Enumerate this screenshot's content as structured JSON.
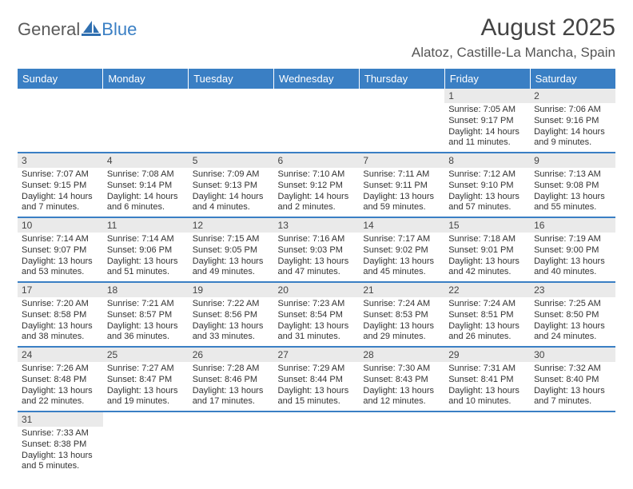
{
  "logo": {
    "text1": "General",
    "text2": "Blue"
  },
  "title": "August 2025",
  "location": "Alatoz, Castille-La Mancha, Spain",
  "colors": {
    "header_bg": "#3a7fc4",
    "header_text": "#ffffff",
    "daynum_bg": "#eaeaea",
    "accent_line": "#3a7fc4",
    "text": "#333333"
  },
  "typography": {
    "title_fontsize": 30,
    "location_fontsize": 17,
    "dayheader_fontsize": 13,
    "daynum_fontsize": 12,
    "info_fontsize": 11
  },
  "day_headers": [
    "Sunday",
    "Monday",
    "Tuesday",
    "Wednesday",
    "Thursday",
    "Friday",
    "Saturday"
  ],
  "weeks": [
    [
      null,
      null,
      null,
      null,
      null,
      {
        "n": "1",
        "sr": "7:05 AM",
        "ss": "9:17 PM",
        "dl": "14 hours and 11 minutes."
      },
      {
        "n": "2",
        "sr": "7:06 AM",
        "ss": "9:16 PM",
        "dl": "14 hours and 9 minutes."
      }
    ],
    [
      {
        "n": "3",
        "sr": "7:07 AM",
        "ss": "9:15 PM",
        "dl": "14 hours and 7 minutes."
      },
      {
        "n": "4",
        "sr": "7:08 AM",
        "ss": "9:14 PM",
        "dl": "14 hours and 6 minutes."
      },
      {
        "n": "5",
        "sr": "7:09 AM",
        "ss": "9:13 PM",
        "dl": "14 hours and 4 minutes."
      },
      {
        "n": "6",
        "sr": "7:10 AM",
        "ss": "9:12 PM",
        "dl": "14 hours and 2 minutes."
      },
      {
        "n": "7",
        "sr": "7:11 AM",
        "ss": "9:11 PM",
        "dl": "13 hours and 59 minutes."
      },
      {
        "n": "8",
        "sr": "7:12 AM",
        "ss": "9:10 PM",
        "dl": "13 hours and 57 minutes."
      },
      {
        "n": "9",
        "sr": "7:13 AM",
        "ss": "9:08 PM",
        "dl": "13 hours and 55 minutes."
      }
    ],
    [
      {
        "n": "10",
        "sr": "7:14 AM",
        "ss": "9:07 PM",
        "dl": "13 hours and 53 minutes."
      },
      {
        "n": "11",
        "sr": "7:14 AM",
        "ss": "9:06 PM",
        "dl": "13 hours and 51 minutes."
      },
      {
        "n": "12",
        "sr": "7:15 AM",
        "ss": "9:05 PM",
        "dl": "13 hours and 49 minutes."
      },
      {
        "n": "13",
        "sr": "7:16 AM",
        "ss": "9:03 PM",
        "dl": "13 hours and 47 minutes."
      },
      {
        "n": "14",
        "sr": "7:17 AM",
        "ss": "9:02 PM",
        "dl": "13 hours and 45 minutes."
      },
      {
        "n": "15",
        "sr": "7:18 AM",
        "ss": "9:01 PM",
        "dl": "13 hours and 42 minutes."
      },
      {
        "n": "16",
        "sr": "7:19 AM",
        "ss": "9:00 PM",
        "dl": "13 hours and 40 minutes."
      }
    ],
    [
      {
        "n": "17",
        "sr": "7:20 AM",
        "ss": "8:58 PM",
        "dl": "13 hours and 38 minutes."
      },
      {
        "n": "18",
        "sr": "7:21 AM",
        "ss": "8:57 PM",
        "dl": "13 hours and 36 minutes."
      },
      {
        "n": "19",
        "sr": "7:22 AM",
        "ss": "8:56 PM",
        "dl": "13 hours and 33 minutes."
      },
      {
        "n": "20",
        "sr": "7:23 AM",
        "ss": "8:54 PM",
        "dl": "13 hours and 31 minutes."
      },
      {
        "n": "21",
        "sr": "7:24 AM",
        "ss": "8:53 PM",
        "dl": "13 hours and 29 minutes."
      },
      {
        "n": "22",
        "sr": "7:24 AM",
        "ss": "8:51 PM",
        "dl": "13 hours and 26 minutes."
      },
      {
        "n": "23",
        "sr": "7:25 AM",
        "ss": "8:50 PM",
        "dl": "13 hours and 24 minutes."
      }
    ],
    [
      {
        "n": "24",
        "sr": "7:26 AM",
        "ss": "8:48 PM",
        "dl": "13 hours and 22 minutes."
      },
      {
        "n": "25",
        "sr": "7:27 AM",
        "ss": "8:47 PM",
        "dl": "13 hours and 19 minutes."
      },
      {
        "n": "26",
        "sr": "7:28 AM",
        "ss": "8:46 PM",
        "dl": "13 hours and 17 minutes."
      },
      {
        "n": "27",
        "sr": "7:29 AM",
        "ss": "8:44 PM",
        "dl": "13 hours and 15 minutes."
      },
      {
        "n": "28",
        "sr": "7:30 AM",
        "ss": "8:43 PM",
        "dl": "13 hours and 12 minutes."
      },
      {
        "n": "29",
        "sr": "7:31 AM",
        "ss": "8:41 PM",
        "dl": "13 hours and 10 minutes."
      },
      {
        "n": "30",
        "sr": "7:32 AM",
        "ss": "8:40 PM",
        "dl": "13 hours and 7 minutes."
      }
    ],
    [
      {
        "n": "31",
        "sr": "7:33 AM",
        "ss": "8:38 PM",
        "dl": "13 hours and 5 minutes."
      },
      null,
      null,
      null,
      null,
      null,
      null
    ]
  ],
  "labels": {
    "sunrise": "Sunrise:",
    "sunset": "Sunset:",
    "daylight": "Daylight:"
  }
}
